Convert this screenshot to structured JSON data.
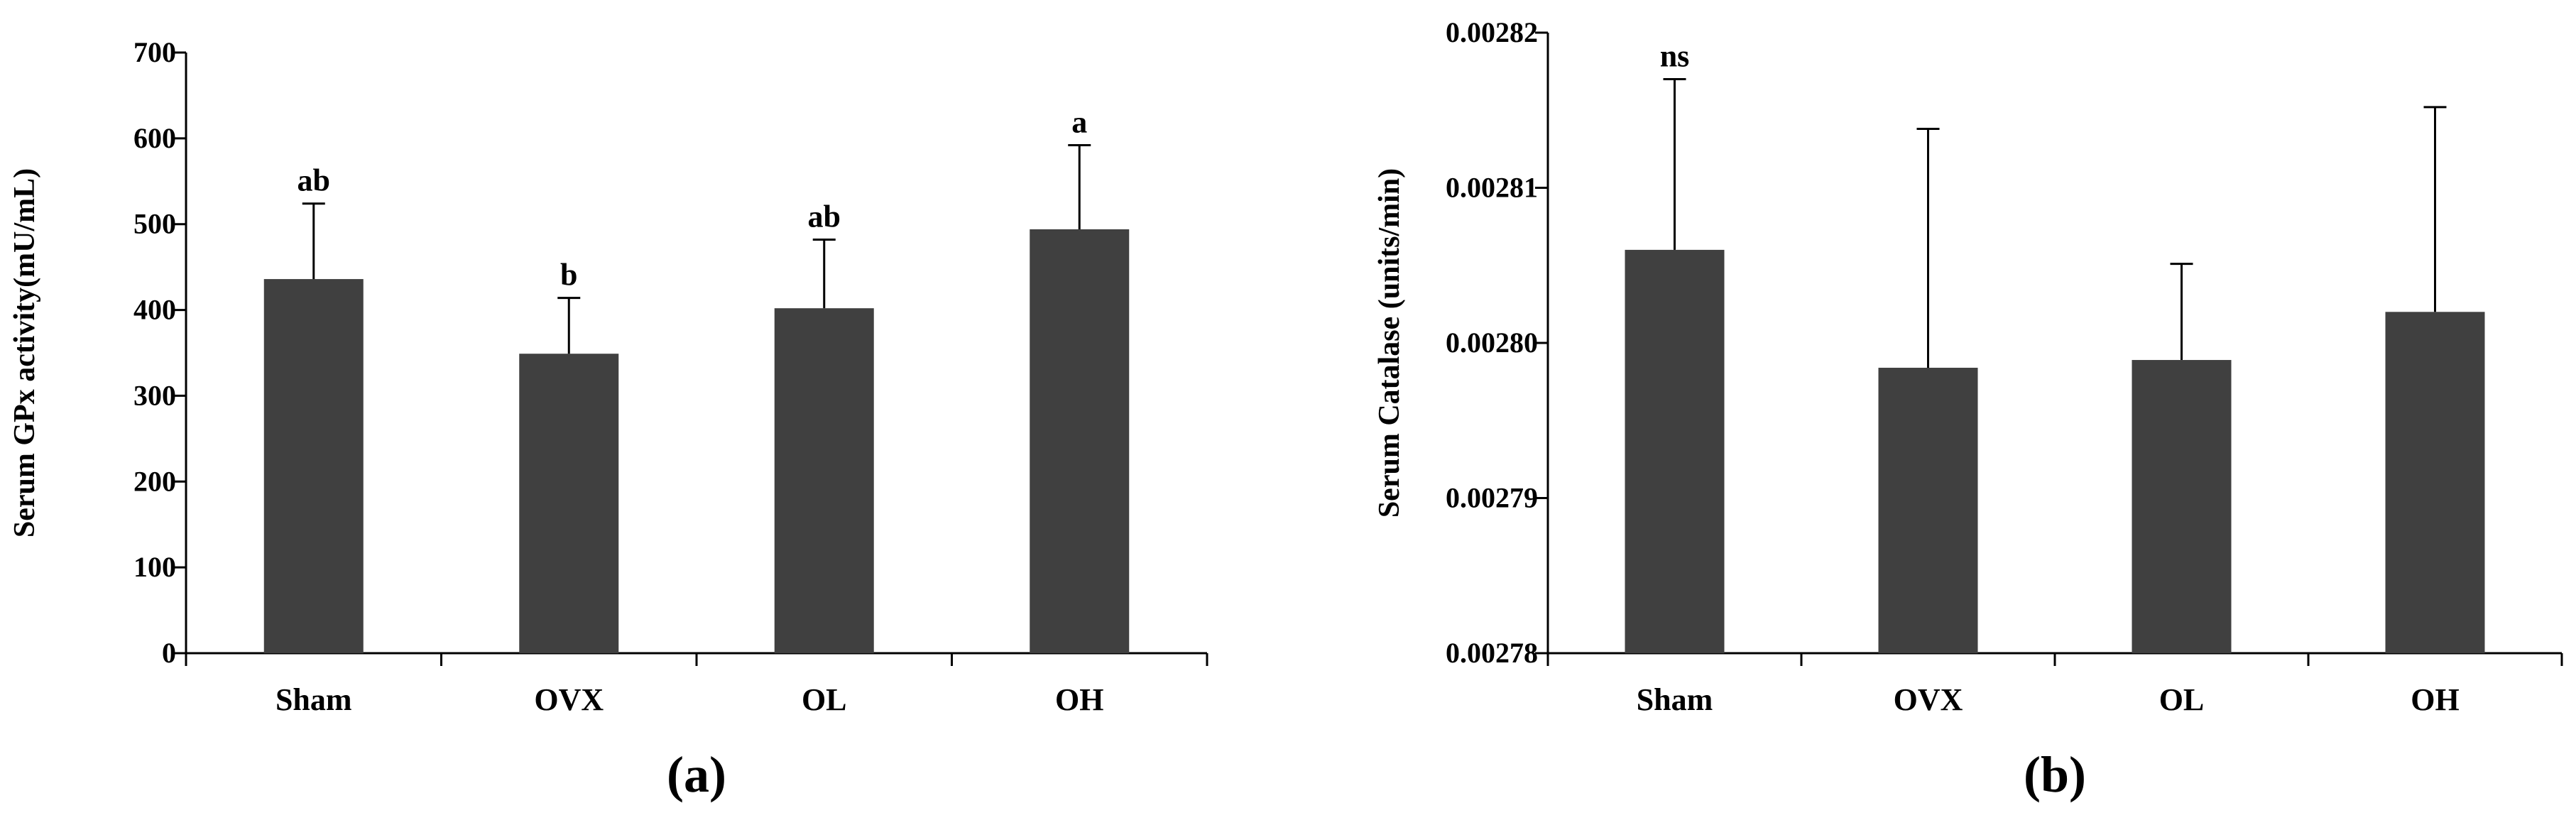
{
  "chart_data": [
    {
      "type": "bar",
      "panel_label": "(a)",
      "title": "",
      "xlabel": "",
      "ylabel": "Serum GPx activity(mU/mL)",
      "categories": [
        "Sham",
        "OVX",
        "OL",
        "OH"
      ],
      "values": [
        436,
        349,
        402,
        494
      ],
      "errors": [
        88,
        65,
        80,
        98
      ],
      "significance": [
        "ab",
        "b",
        "ab",
        "a"
      ],
      "ylim": [
        0,
        700
      ],
      "yticks": [
        0,
        100,
        200,
        300,
        400,
        500,
        600,
        700
      ],
      "ytick_labels": [
        "0",
        "100",
        "200",
        "300",
        "400",
        "500",
        "600",
        "700"
      ],
      "grid": false,
      "legend": "none",
      "colors": {
        "bar": "#404040",
        "axis": "#000000"
      }
    },
    {
      "type": "bar",
      "panel_label": "(b)",
      "title": "",
      "xlabel": "",
      "ylabel": "Serum Catalase (units/min)",
      "categories": [
        "Sham",
        "OVX",
        "OL",
        "OH"
      ],
      "values": [
        0.002806,
        0.0027984,
        0.0027989,
        0.002802
      ],
      "errors": [
        1.1e-05,
        1.54e-05,
        6.2e-06,
        1.32e-05
      ],
      "significance": [
        "ns",
        "",
        "",
        ""
      ],
      "ylim": [
        0.00278,
        0.00282
      ],
      "yticks": [
        0.00278,
        0.00279,
        0.0028,
        0.00281,
        0.00282
      ],
      "ytick_labels": [
        "0.00278",
        "0.00279",
        "0.00280",
        "0.00281",
        "0.00282"
      ],
      "grid": false,
      "legend": "none",
      "colors": {
        "bar": "#404040",
        "axis": "#000000"
      }
    }
  ]
}
